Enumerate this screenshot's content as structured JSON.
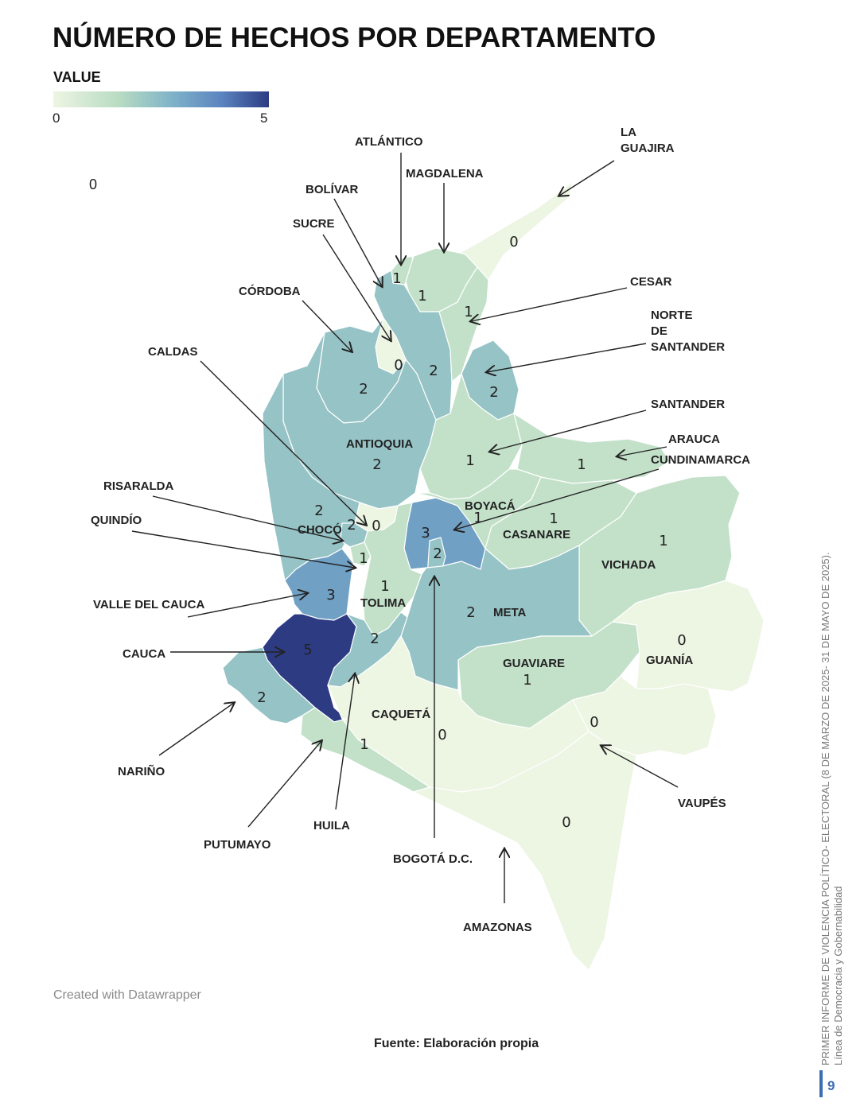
{
  "title": "NÚMERO DE HECHOS POR DEPARTAMENTO",
  "legend": {
    "title": "VALUE",
    "min_label": "0",
    "max_label": "5",
    "min": 0,
    "max": 5,
    "colors": [
      "#edf5e3",
      "#b9dcc2",
      "#7fb3c9",
      "#5b84c0",
      "#2d3b83"
    ]
  },
  "stray_value": "0",
  "departments": [
    {
      "name": "LA GUAJIRA",
      "label_lines": [
        "LA",
        "GUAJIRA"
      ],
      "value": 0
    },
    {
      "name": "ATLÁNTICO",
      "label_lines": [
        "ATLÁNTICO"
      ],
      "value": 1
    },
    {
      "name": "MAGDALENA",
      "label_lines": [
        "MAGDALENA"
      ],
      "value": 1
    },
    {
      "name": "BOLÍVAR",
      "label_lines": [
        "BOLÍVAR"
      ],
      "value": 2
    },
    {
      "name": "SUCRE",
      "label_lines": [
        "SUCRE"
      ],
      "value": 0
    },
    {
      "name": "CÓRDOBA",
      "label_lines": [
        "CÓRDOBA"
      ],
      "value": 2
    },
    {
      "name": "CESAR",
      "label_lines": [
        "CESAR"
      ],
      "value": 1
    },
    {
      "name": "NORTE DE SANTANDER",
      "label_lines": [
        "NORTE",
        "DE",
        "SANTANDER"
      ],
      "value": 2
    },
    {
      "name": "ANTIOQUIA",
      "label_lines": [
        "ANTIOQUIA"
      ],
      "value": 2
    },
    {
      "name": "SANTANDER",
      "label_lines": [
        "SANTANDER"
      ],
      "value": 1
    },
    {
      "name": "ARAUCA",
      "label_lines": [
        "ARAUCA"
      ],
      "value": 1
    },
    {
      "name": "CUNDINAMARCA",
      "label_lines": [
        "CUNDINAMARCA"
      ],
      "value": 3
    },
    {
      "name": "BOYACÁ",
      "label_lines": [
        "BOYACÁ"
      ],
      "value": 1
    },
    {
      "name": "CASANARE",
      "label_lines": [
        "CASANARE"
      ],
      "value": 1
    },
    {
      "name": "CALDAS",
      "label_lines": [
        "CALDAS"
      ],
      "value": 0
    },
    {
      "name": "CHOCÓ",
      "label_lines": [
        "CHOCÓ"
      ],
      "value": 2
    },
    {
      "name": "RISARALDA",
      "label_lines": [
        "RISARALDA"
      ],
      "value": 2
    },
    {
      "name": "QUINDÍO",
      "label_lines": [
        "QUINDÍO"
      ],
      "value": 1
    },
    {
      "name": "TOLIMA",
      "label_lines": [
        "TOLIMA"
      ],
      "value": 1
    },
    {
      "name": "BOGOTÁ D.C.",
      "label_lines": [
        "BOGOTÁ D.C."
      ],
      "value": 2
    },
    {
      "name": "VICHADA",
      "label_lines": [
        "VICHADA"
      ],
      "value": 1
    },
    {
      "name": "META",
      "label_lines": [
        "META"
      ],
      "value": 2
    },
    {
      "name": "VALLE DEL CAUCA",
      "label_lines": [
        "VALLE DEL CAUCA"
      ],
      "value": 3
    },
    {
      "name": "CAUCA",
      "label_lines": [
        "CAUCA"
      ],
      "value": 5
    },
    {
      "name": "HUILA",
      "label_lines": [
        "HUILA"
      ],
      "value": 2
    },
    {
      "name": "GUAVIARE",
      "label_lines": [
        "GUAVIARE"
      ],
      "value": 1
    },
    {
      "name": "GUANÍA",
      "label_lines": [
        "GUANÍA"
      ],
      "value": 0
    },
    {
      "name": "NARIÑO",
      "label_lines": [
        "NARIÑO"
      ],
      "value": 2
    },
    {
      "name": "CAQUETÁ",
      "label_lines": [
        "CAQUETÁ"
      ],
      "value": 0
    },
    {
      "name": "PUTUMAYO",
      "label_lines": [
        "PUTUMAYO"
      ],
      "value": 1
    },
    {
      "name": "VAUPÉS",
      "label_lines": [
        "VAUPÉS"
      ],
      "value": 0
    },
    {
      "name": "AMAZONAS",
      "label_lines": [
        "AMAZONAS"
      ],
      "value": 0
    }
  ],
  "credit": "Created with Datawrapper",
  "source": "Fuente: Elaboración propia",
  "side_note": {
    "line1": "PRIMER INFORME DE VIOLENCIA POLÍTICO- ELECTORAL (8 DE MARZO DE 2025- 31 DE MAYO DE 2025).",
    "line2": "Línea de Democracia y Gobernabilidad"
  },
  "page_number": "9"
}
